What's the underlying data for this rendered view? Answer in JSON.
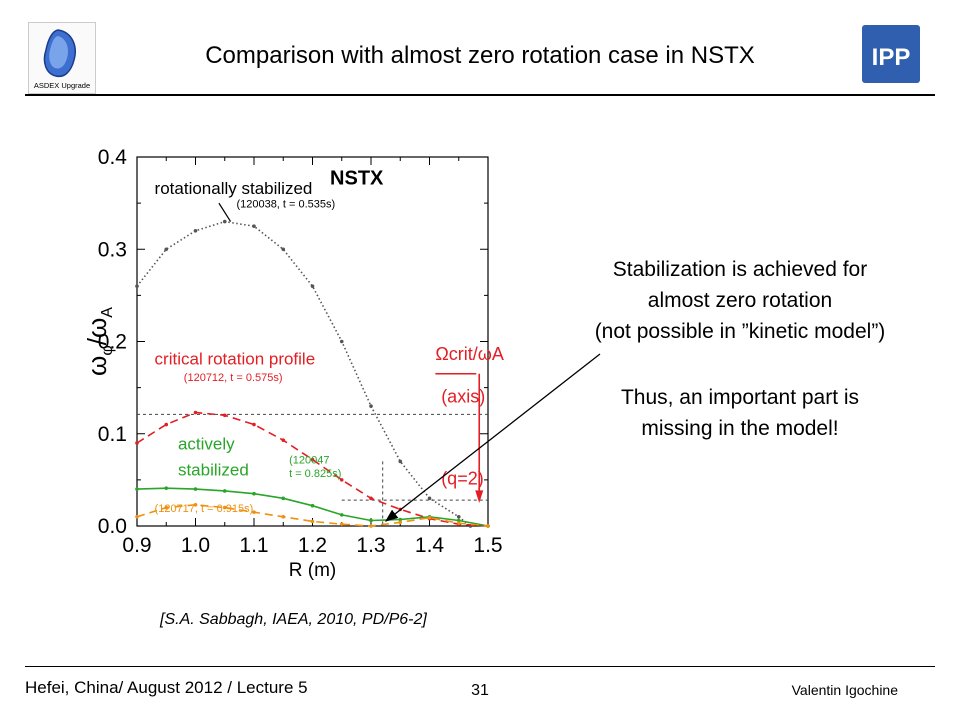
{
  "header": {
    "title": "Comparison with almost zero rotation case in NSTX",
    "logo_left_text": "ASDEX Upgrade",
    "logo_right_text": "IPP"
  },
  "chart_data": {
    "type": "line",
    "title": "NSTX",
    "xlabel": "R (m)",
    "ylabel": "ωφ/ωA",
    "xlim": [
      0.9,
      1.5
    ],
    "ylim": [
      0.0,
      0.4
    ],
    "x_ticks": [
      "0.9",
      "1.0",
      "1.1",
      "1.2",
      "1.3",
      "1.4",
      "1.5"
    ],
    "y_ticks": [
      "0.0",
      "0.1",
      "0.2",
      "0.3",
      "0.4"
    ],
    "series": [
      {
        "name": "rotationally stabilized",
        "detail": "(120038, t = 0.535s)",
        "color": "#555555",
        "style": "dotted",
        "x": [
          0.9,
          0.95,
          1.0,
          1.05,
          1.1,
          1.15,
          1.2,
          1.25,
          1.3,
          1.35,
          1.4,
          1.45,
          1.47
        ],
        "y": [
          0.26,
          0.3,
          0.32,
          0.33,
          0.325,
          0.3,
          0.26,
          0.2,
          0.13,
          0.07,
          0.03,
          0.01,
          0.0
        ]
      },
      {
        "name": "critical rotation profile",
        "detail": "(120712, t = 0.575s)",
        "color": "#e31e24",
        "style": "dashed",
        "x": [
          0.9,
          0.95,
          1.0,
          1.05,
          1.1,
          1.15,
          1.2,
          1.25,
          1.3,
          1.35,
          1.4,
          1.45,
          1.5
        ],
        "y": [
          0.09,
          0.11,
          0.123,
          0.12,
          0.11,
          0.093,
          0.072,
          0.05,
          0.03,
          0.018,
          0.008,
          0.002,
          0.0
        ]
      },
      {
        "name": "actively stabilized",
        "detail": "(120047 t = 0.825s)",
        "color": "#2aa52a",
        "style": "solid",
        "x": [
          0.9,
          0.95,
          1.0,
          1.05,
          1.1,
          1.15,
          1.2,
          1.25,
          1.3,
          1.35,
          1.4,
          1.45,
          1.5
        ],
        "y": [
          0.04,
          0.041,
          0.04,
          0.038,
          0.035,
          0.03,
          0.022,
          0.012,
          0.006,
          0.007,
          0.01,
          0.006,
          0.0
        ]
      },
      {
        "name": "",
        "detail": "(120717, t = 0.915s)",
        "color": "#f0900e",
        "style": "dashed",
        "x": [
          0.9,
          0.95,
          1.0,
          1.05,
          1.1,
          1.15,
          1.2,
          1.25,
          1.3,
          1.35,
          1.4,
          1.45,
          1.5
        ],
        "y": [
          0.01,
          0.02,
          0.023,
          0.02,
          0.015,
          0.01,
          0.005,
          0.002,
          0.0,
          0.004,
          0.009,
          0.003,
          0.0
        ]
      }
    ],
    "annotations": {
      "crit_label": "Ωcrit/ωA",
      "axis_label": "(axis)",
      "q2_label": "(q=2)",
      "axis_level": 0.121,
      "q2_level": 0.028,
      "q2_r": 1.32
    }
  },
  "reference": "[S.A. Sabbagh, IAEA, 2010, PD/P6-2]",
  "notes": {
    "line1": "Stabilization is achieved for",
    "line2": "almost zero rotation",
    "line3": "(not possible in ”kinetic model”)",
    "line4": "Thus, an important part is",
    "line5": "missing in the model!"
  },
  "footer": {
    "left": "Hefei, China/ August 2012 / Lecture 5",
    "page": "31",
    "right": "Valentin Igochine"
  },
  "colors": {
    "red": "#e31e24",
    "green": "#2aa52a",
    "orange": "#f0900e",
    "gray": "#555555"
  }
}
